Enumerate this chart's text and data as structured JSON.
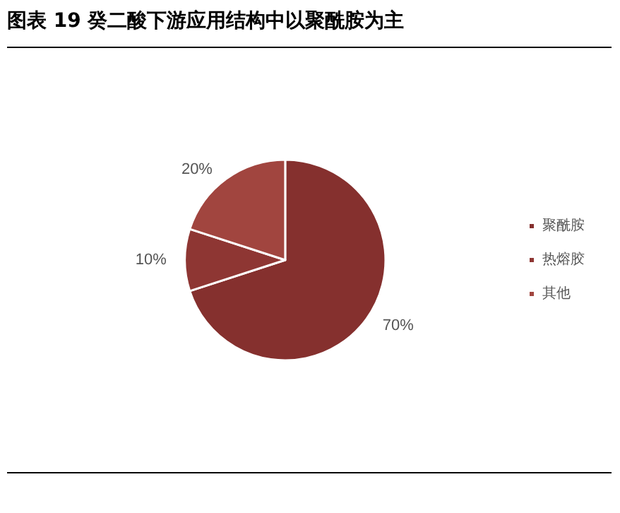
{
  "chart_data": {
    "type": "pie",
    "title": "图表 19  癸二酸下游应用结构中以聚酰胺为主",
    "categories": [
      "聚酰胺",
      "热熔胶",
      "其他"
    ],
    "values": [
      70,
      10,
      20
    ],
    "value_labels": [
      "70%",
      "10%",
      "20%"
    ],
    "colors": [
      "#85302e",
      "#8e3633",
      "#a1453f"
    ],
    "legend": "right"
  }
}
